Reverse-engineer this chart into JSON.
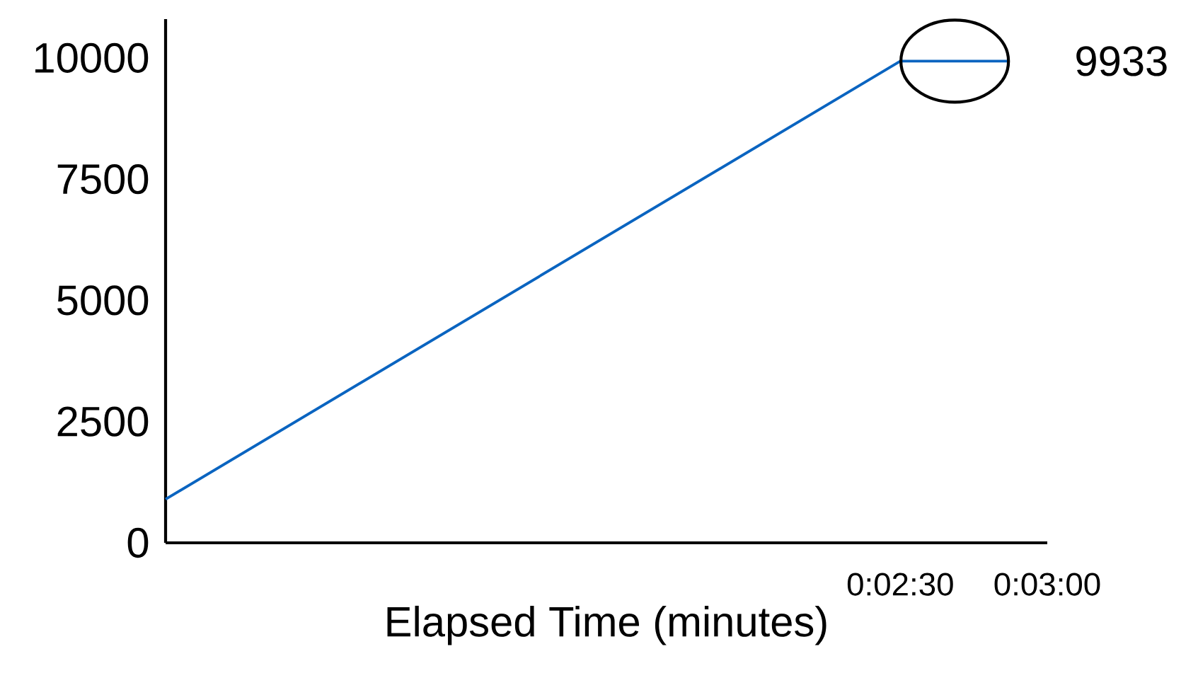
{
  "chart_data": {
    "type": "line",
    "xlabel": "Elapsed Time (minutes)",
    "x": [
      0,
      2.5,
      2.87
    ],
    "values": [
      900,
      9933,
      9933
    ],
    "color": "#0a64c0",
    "xlim": [
      0,
      3
    ],
    "ylim": [
      0,
      10800
    ],
    "xticks": [
      {
        "value": 2.5,
        "label": "0:02:30"
      },
      {
        "value": 3,
        "label": "0:03:00"
      }
    ],
    "yticks": [
      0,
      2500,
      5000,
      7500,
      10000
    ],
    "annotations": [
      {
        "text": "9933",
        "x": 2.87,
        "y": 9933
      }
    ]
  }
}
